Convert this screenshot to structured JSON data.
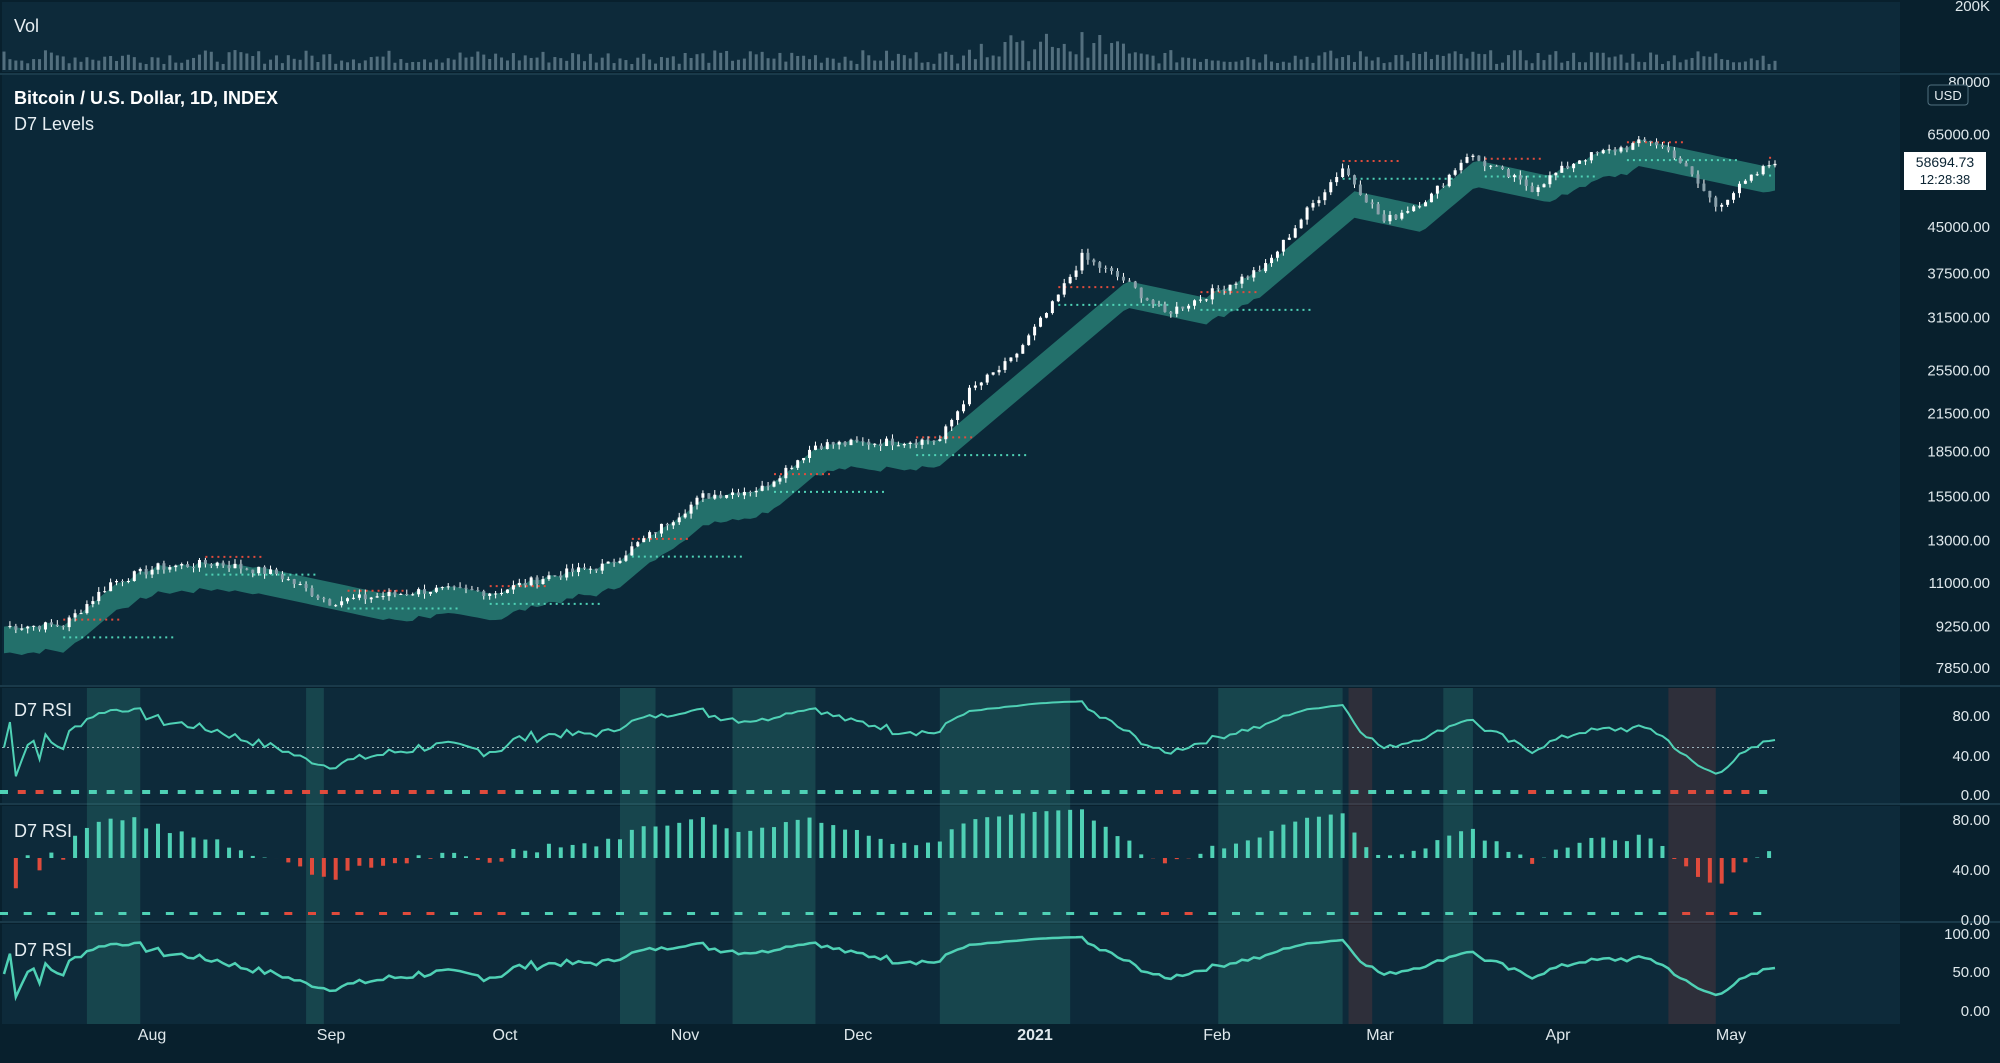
{
  "header": {
    "volume_label": "Vol",
    "symbol_title": "Bitcoin / U.S. Dollar, 1D, INDEX",
    "indicator_title": "D7 Levels",
    "currency_badge": "USD"
  },
  "price_badge": {
    "price": "58694.73",
    "countdown": "12:28:38"
  },
  "panes": {
    "volume": {
      "label": "Vol",
      "axis_ticks": [
        "200K",
        "80000"
      ]
    },
    "rsi_line": {
      "label": "D7 RSI",
      "axis_ticks": [
        "80.00",
        "40.00",
        "0.00"
      ]
    },
    "rsi_histogram": {
      "label": "D7 RSI",
      "axis_ticks": [
        "80.00",
        "40.00",
        "0.00"
      ]
    },
    "rsi_oscillator": {
      "label": "D7 RSI",
      "axis_ticks": [
        "100.00",
        "50.00",
        "0.00"
      ]
    }
  },
  "time_axis": {
    "labels": [
      "Aug",
      "Sep",
      "Oct",
      "Nov",
      "Dec",
      "2021",
      "Feb",
      "Mar",
      "Apr",
      "May"
    ]
  },
  "colors": {
    "background": "#0b2433",
    "pane_bg": "#0d2a3a",
    "teal": "#4fd1b5",
    "teal_cloud": "#2e8f82",
    "red": "#e04b3c",
    "grid": "#1c3c4c",
    "text": "#e6eef2"
  },
  "chart_data": {
    "type": "line",
    "title": "Bitcoin / U.S. Dollar, 1D, INDEX",
    "series": [
      {
        "name": "",
        "x": [
          "2020-07-10",
          "2020-07-20",
          "2020-07-28",
          "2020-08-05",
          "2020-08-15",
          "2020-08-25",
          "2020-09-03",
          "2020-09-10",
          "2020-09-20",
          "2020-10-01",
          "2020-10-10",
          "2020-10-20",
          "2020-10-28",
          "2020-11-05",
          "2020-11-15",
          "2020-11-24",
          "2020-12-05",
          "2020-12-15",
          "2020-12-20",
          "2020-12-27",
          "2021-01-03",
          "2021-01-08",
          "2021-01-15",
          "2021-01-22",
          "2021-01-28",
          "2021-02-08",
          "2021-02-15",
          "2021-02-21",
          "2021-02-28",
          "2021-03-08",
          "2021-03-14",
          "2021-03-25",
          "2021-04-02",
          "2021-04-14",
          "2021-04-18",
          "2021-04-25",
          "2021-05-05"
        ],
        "values": [
          9250,
          9300,
          11000,
          11700,
          11900,
          11400,
          10200,
          10400,
          10700,
          10600,
          11300,
          11800,
          13500,
          15500,
          16000,
          19000,
          19200,
          19400,
          23500,
          26500,
          33000,
          40000,
          36500,
          32000,
          34000,
          38500,
          48000,
          57000,
          46000,
          51000,
          60000,
          52500,
          59000,
          63500,
          60000,
          49000,
          58694.73
        ]
      }
    ],
    "yticks": [
      "200K",
      "80000",
      "65000.00",
      "45000.00",
      "37500.00",
      "31500.00",
      "25500.00",
      "21500.00",
      "18500.00",
      "15500.00",
      "13000.00",
      "11000.00",
      "9250.00",
      "7850.00"
    ],
    "ylim": [
      7850,
      80000
    ],
    "yscale": "log",
    "xticks": [
      "Aug",
      "Sep",
      "Oct",
      "Nov",
      "Dec",
      "2021",
      "Feb",
      "Mar",
      "Apr",
      "May"
    ],
    "grid": false,
    "last_price": 58694.73
  }
}
